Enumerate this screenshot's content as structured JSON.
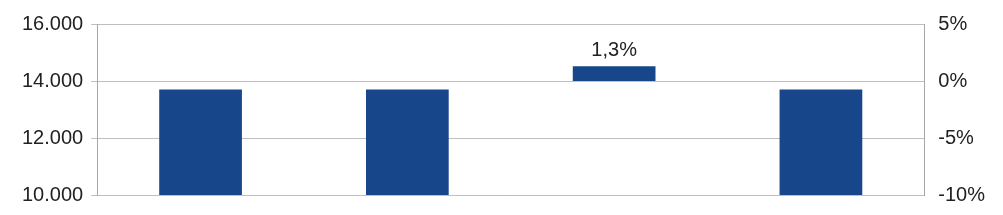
{
  "chart_data": {
    "type": "bar",
    "categories": [
      null,
      null,
      null,
      null
    ],
    "series": [
      {
        "values": [
          13700,
          13700,
          null,
          13700
        ],
        "color": "#17478a"
      },
      {
        "values": [
          null,
          null,
          1.3,
          null
        ],
        "color": "#17478a",
        "axis": "y2",
        "data_labels": true,
        "value_labels": [
          null,
          null,
          "1,3%",
          null
        ]
      }
    ],
    "ylim": [
      10000,
      16000
    ],
    "yticks": [
      {
        "value": 10000,
        "label": "10.000"
      },
      {
        "value": 12000,
        "label": "12.000"
      },
      {
        "value": 14000,
        "label": "14.000"
      },
      {
        "value": 16000,
        "label": "16.000"
      }
    ],
    "y2lim": [
      -10,
      5
    ],
    "y2ticks": [
      {
        "value": -10,
        "label": "-10%"
      },
      {
        "value": -5,
        "label": "-5%"
      },
      {
        "value": 0,
        "label": "0%"
      },
      {
        "value": 5,
        "label": "5%"
      }
    ],
    "grid": true
  }
}
